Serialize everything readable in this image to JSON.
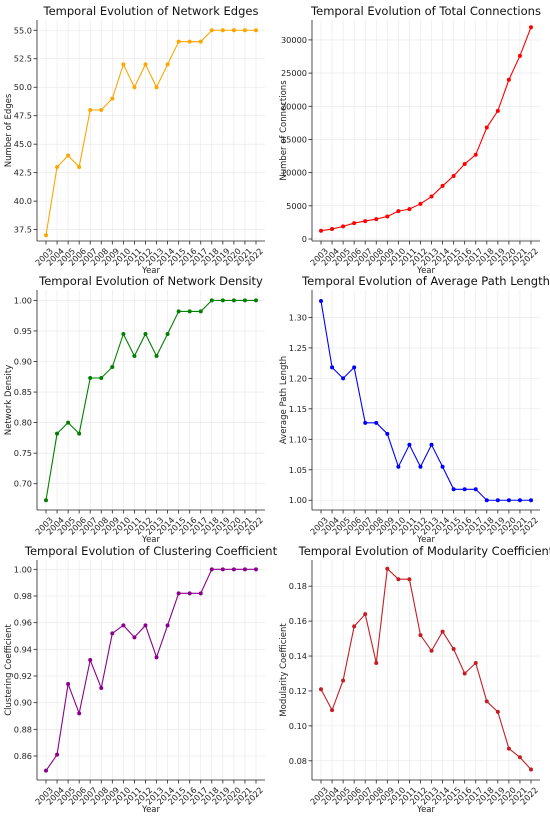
{
  "years": [
    "2003",
    "2004",
    "2005",
    "2006",
    "2007",
    "2008",
    "2009",
    "2010",
    "2011",
    "2012",
    "2013",
    "2014",
    "2015",
    "2016",
    "2017",
    "2018",
    "2019",
    "2020",
    "2021",
    "2022"
  ],
  "chart_data": [
    {
      "id": "edges",
      "type": "line",
      "title": "Temporal Evolution of Network Edges",
      "xlabel": "Year",
      "ylabel": "Number of Edges",
      "color": "#FFA500",
      "ylim": [
        36.5,
        55.9
      ],
      "yticks": [
        37.5,
        40.0,
        42.5,
        45.0,
        47.5,
        50.0,
        52.5,
        55.0
      ],
      "ytick_labels": [
        "37.5",
        "40.0",
        "42.5",
        "45.0",
        "47.5",
        "50.0",
        "52.5",
        "55.0"
      ],
      "series": [
        {
          "values": [
            37,
            43,
            44,
            43,
            48,
            48,
            49,
            52,
            50,
            52,
            50,
            52,
            54,
            54,
            54,
            55,
            55,
            55,
            55,
            55
          ]
        }
      ]
    },
    {
      "id": "connections",
      "type": "line",
      "title": "Temporal Evolution of Total Connections",
      "xlabel": "Year",
      "ylabel": "Number of Connections",
      "color": "#FF0000",
      "ylim": [
        -300,
        33000
      ],
      "yticks": [
        0,
        5000,
        10000,
        15000,
        20000,
        25000,
        30000
      ],
      "ytick_labels": [
        "0",
        "5000",
        "10000",
        "15000",
        "20000",
        "25000",
        "30000"
      ],
      "series": [
        {
          "values": [
            1250,
            1500,
            1900,
            2400,
            2700,
            3000,
            3400,
            4200,
            4500,
            5300,
            6400,
            8000,
            9500,
            11300,
            12700,
            16800,
            19300,
            24000,
            27600,
            31900
          ]
        }
      ]
    },
    {
      "id": "density",
      "type": "line",
      "title": "Temporal Evolution of Network Density",
      "xlabel": "Year",
      "ylabel": "Network Density",
      "color": "#008000",
      "ylim": [
        0.657,
        1.017
      ],
      "yticks": [
        0.7,
        0.75,
        0.8,
        0.85,
        0.9,
        0.95,
        1.0
      ],
      "ytick_labels": [
        "0.70",
        "0.75",
        "0.80",
        "0.85",
        "0.90",
        "0.95",
        "1.00"
      ],
      "series": [
        {
          "values": [
            0.673,
            0.782,
            0.8,
            0.782,
            0.873,
            0.873,
            0.891,
            0.945,
            0.909,
            0.945,
            0.909,
            0.945,
            0.982,
            0.982,
            0.982,
            1.0,
            1.0,
            1.0,
            1.0,
            1.0
          ]
        }
      ]
    },
    {
      "id": "path_length",
      "type": "line",
      "title": "Temporal Evolution of Average Path Length",
      "xlabel": "Year",
      "ylabel": "Average Path Length",
      "color": "#0000FF",
      "ylim": [
        0.984,
        1.345
      ],
      "yticks": [
        1.0,
        1.05,
        1.1,
        1.15,
        1.2,
        1.25,
        1.3
      ],
      "ytick_labels": [
        "1.00",
        "1.05",
        "1.10",
        "1.15",
        "1.20",
        "1.25",
        "1.30"
      ],
      "series": [
        {
          "values": [
            1.327,
            1.218,
            1.2,
            1.218,
            1.127,
            1.127,
            1.109,
            1.055,
            1.091,
            1.055,
            1.091,
            1.055,
            1.018,
            1.018,
            1.018,
            1.0,
            1.0,
            1.0,
            1.0,
            1.0
          ]
        }
      ]
    },
    {
      "id": "clustering",
      "type": "line",
      "title": "Temporal Evolution of Clustering Coefficient",
      "xlabel": "Year",
      "ylabel": "Clustering Coefficient",
      "color": "#8B008B",
      "ylim": [
        0.842,
        1.007
      ],
      "yticks": [
        0.86,
        0.88,
        0.9,
        0.92,
        0.94,
        0.96,
        0.98,
        1.0
      ],
      "ytick_labels": [
        "0.86",
        "0.88",
        "0.90",
        "0.92",
        "0.94",
        "0.96",
        "0.98",
        "1.00"
      ],
      "series": [
        {
          "values": [
            0.849,
            0.861,
            0.914,
            0.892,
            0.932,
            0.911,
            0.952,
            0.958,
            0.949,
            0.958,
            0.934,
            0.958,
            0.982,
            0.982,
            0.982,
            1.0,
            1.0,
            1.0,
            1.0,
            1.0
          ]
        }
      ]
    },
    {
      "id": "modularity",
      "type": "line",
      "title": "Temporal Evolution of Modularity Coefficient",
      "xlabel": "Year",
      "ylabel": "Modularity Coefficient",
      "color": "#C41E24",
      "ylim": [
        0.069,
        0.195
      ],
      "yticks": [
        0.08,
        0.1,
        0.12,
        0.14,
        0.16,
        0.18
      ],
      "ytick_labels": [
        "0.08",
        "0.10",
        "0.12",
        "0.14",
        "0.16",
        "0.18"
      ],
      "series": [
        {
          "values": [
            0.121,
            0.109,
            0.126,
            0.157,
            0.164,
            0.136,
            0.19,
            0.184,
            0.184,
            0.152,
            0.143,
            0.154,
            0.144,
            0.13,
            0.136,
            0.114,
            0.108,
            0.087,
            0.082,
            0.075
          ]
        }
      ]
    }
  ]
}
